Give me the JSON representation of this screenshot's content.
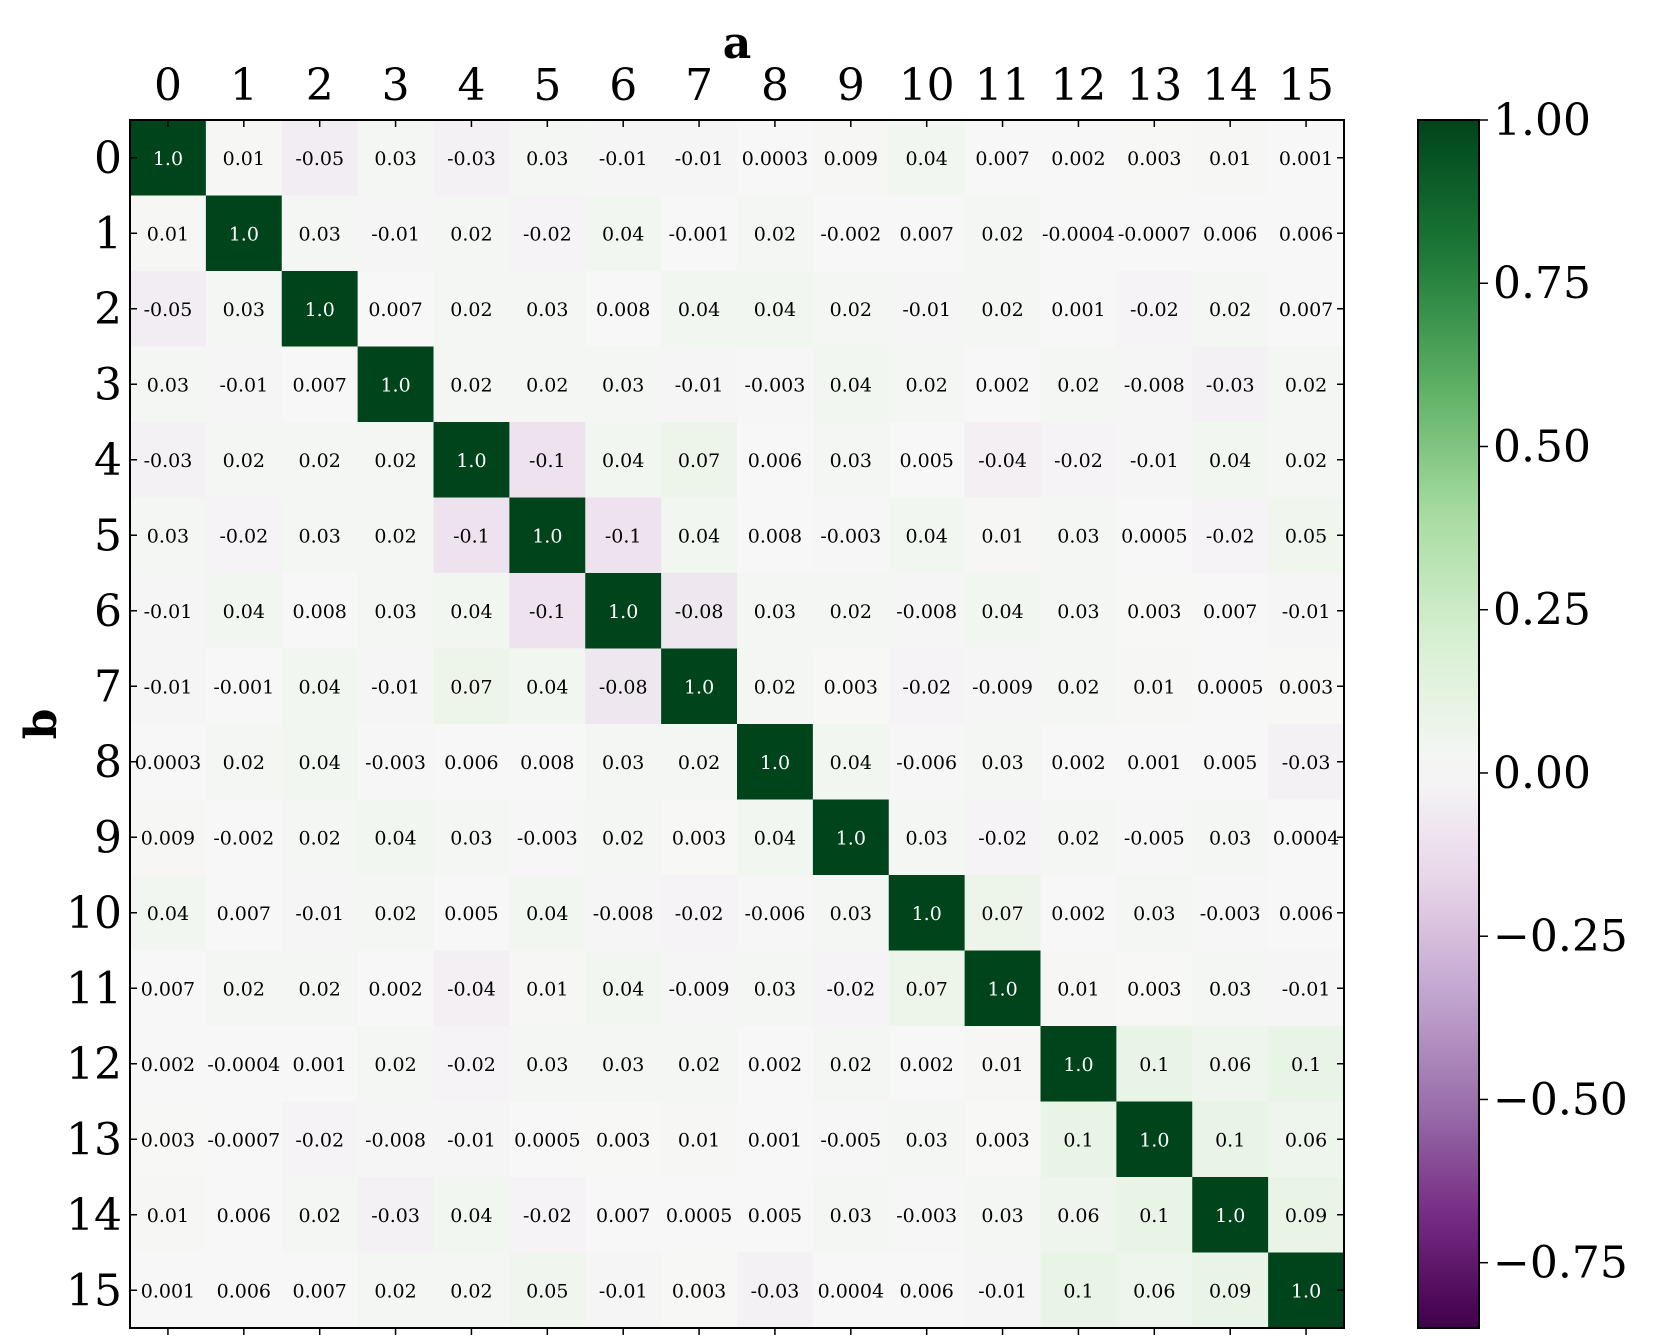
{
  "chart_data": {
    "type": "heatmap",
    "xlabel": "a",
    "ylabel": "b",
    "x_categories": [
      "0",
      "1",
      "2",
      "3",
      "4",
      "5",
      "6",
      "7",
      "8",
      "9",
      "10",
      "11",
      "12",
      "13",
      "14",
      "15"
    ],
    "y_categories": [
      "0",
      "1",
      "2",
      "3",
      "4",
      "5",
      "6",
      "7",
      "8",
      "9",
      "10",
      "11",
      "12",
      "13",
      "14",
      "15"
    ],
    "x_axis_position": "top",
    "colormap": "PRGn",
    "colorbar": {
      "range": [
        -0.85,
        1.0
      ],
      "ticks": [
        1.0,
        0.75,
        0.5,
        0.25,
        0.0,
        -0.25,
        -0.5,
        -0.75
      ],
      "tick_labels": [
        "1.00",
        "0.75",
        "0.50",
        "0.25",
        "0.00",
        "−0.25",
        "−0.50",
        "−0.75"
      ]
    },
    "values": [
      [
        1.0,
        0.01,
        -0.05,
        0.03,
        -0.03,
        0.03,
        -0.01,
        -0.01,
        0.0003,
        0.009,
        0.04,
        0.007,
        0.002,
        0.003,
        0.01,
        0.001
      ],
      [
        0.01,
        1.0,
        0.03,
        -0.01,
        0.02,
        -0.02,
        0.04,
        -0.001,
        0.02,
        -0.002,
        0.007,
        0.02,
        -0.0004,
        -0.0007,
        0.006,
        0.006
      ],
      [
        -0.05,
        0.03,
        1.0,
        0.007,
        0.02,
        0.03,
        0.008,
        0.04,
        0.04,
        0.02,
        -0.01,
        0.02,
        0.001,
        -0.02,
        0.02,
        0.007
      ],
      [
        0.03,
        -0.01,
        0.007,
        1.0,
        0.02,
        0.02,
        0.03,
        -0.01,
        -0.003,
        0.04,
        0.02,
        0.002,
        0.02,
        -0.008,
        -0.03,
        0.02
      ],
      [
        -0.03,
        0.02,
        0.02,
        0.02,
        1.0,
        -0.1,
        0.04,
        0.07,
        0.006,
        0.03,
        0.005,
        -0.04,
        -0.02,
        -0.01,
        0.04,
        0.02
      ],
      [
        0.03,
        -0.02,
        0.03,
        0.02,
        -0.1,
        1.0,
        -0.1,
        0.04,
        0.008,
        -0.003,
        0.04,
        0.01,
        0.03,
        0.0005,
        -0.02,
        0.05
      ],
      [
        -0.01,
        0.04,
        0.008,
        0.03,
        0.04,
        -0.1,
        1.0,
        -0.08,
        0.03,
        0.02,
        -0.008,
        0.04,
        0.03,
        0.003,
        0.007,
        -0.01
      ],
      [
        -0.01,
        -0.001,
        0.04,
        -0.01,
        0.07,
        0.04,
        -0.08,
        1.0,
        0.02,
        0.003,
        -0.02,
        -0.009,
        0.02,
        0.01,
        0.0005,
        0.003
      ],
      [
        0.0003,
        0.02,
        0.04,
        -0.003,
        0.006,
        0.008,
        0.03,
        0.02,
        1.0,
        0.04,
        -0.006,
        0.03,
        0.002,
        0.001,
        0.005,
        -0.03
      ],
      [
        0.009,
        -0.002,
        0.02,
        0.04,
        0.03,
        -0.003,
        0.02,
        0.003,
        0.04,
        1.0,
        0.03,
        -0.02,
        0.02,
        -0.005,
        0.03,
        0.0004
      ],
      [
        0.04,
        0.007,
        -0.01,
        0.02,
        0.005,
        0.04,
        -0.008,
        -0.02,
        -0.006,
        0.03,
        1.0,
        0.07,
        0.002,
        0.03,
        -0.003,
        0.006
      ],
      [
        0.007,
        0.02,
        0.02,
        0.002,
        -0.04,
        0.01,
        0.04,
        -0.009,
        0.03,
        -0.02,
        0.07,
        1.0,
        0.01,
        0.003,
        0.03,
        -0.01
      ],
      [
        0.002,
        -0.0004,
        0.001,
        0.02,
        -0.02,
        0.03,
        0.03,
        0.02,
        0.002,
        0.02,
        0.002,
        0.01,
        1.0,
        0.1,
        0.06,
        0.1
      ],
      [
        0.003,
        -0.0007,
        -0.02,
        -0.008,
        -0.01,
        0.0005,
        0.003,
        0.01,
        0.001,
        -0.005,
        0.03,
        0.003,
        0.1,
        1.0,
        0.1,
        0.06
      ],
      [
        0.01,
        0.006,
        0.02,
        -0.03,
        0.04,
        -0.02,
        0.007,
        0.0005,
        0.005,
        0.03,
        -0.003,
        0.03,
        0.06,
        0.1,
        1.0,
        0.09
      ],
      [
        0.001,
        0.006,
        0.007,
        0.02,
        0.02,
        0.05,
        -0.01,
        0.003,
        -0.03,
        0.0004,
        0.006,
        -0.01,
        0.1,
        0.06,
        0.09,
        1.0
      ]
    ],
    "cell_labels": [
      [
        "1.0",
        "0.01",
        "-0.05",
        "0.03",
        "-0.03",
        "0.03",
        "-0.01",
        "-0.01",
        "0.0003",
        "0.009",
        "0.04",
        "0.007",
        "0.002",
        "0.003",
        "0.01",
        "0.001"
      ],
      [
        "0.01",
        "1.0",
        "0.03",
        "-0.01",
        "0.02",
        "-0.02",
        "0.04",
        "-0.001",
        "0.02",
        "-0.002",
        "0.007",
        "0.02",
        "-0.0004",
        "-0.0007",
        "0.006",
        "0.006"
      ],
      [
        "-0.05",
        "0.03",
        "1.0",
        "0.007",
        "0.02",
        "0.03",
        "0.008",
        "0.04",
        "0.04",
        "0.02",
        "-0.01",
        "0.02",
        "0.001",
        "-0.02",
        "0.02",
        "0.007"
      ],
      [
        "0.03",
        "-0.01",
        "0.007",
        "1.0",
        "0.02",
        "0.02",
        "0.03",
        "-0.01",
        "-0.003",
        "0.04",
        "0.02",
        "0.002",
        "0.02",
        "-0.008",
        "-0.03",
        "0.02"
      ],
      [
        "-0.03",
        "0.02",
        "0.02",
        "0.02",
        "1.0",
        "-0.1",
        "0.04",
        "0.07",
        "0.006",
        "0.03",
        "0.005",
        "-0.04",
        "-0.02",
        "-0.01",
        "0.04",
        "0.02"
      ],
      [
        "0.03",
        "-0.02",
        "0.03",
        "0.02",
        "-0.1",
        "1.0",
        "-0.1",
        "0.04",
        "0.008",
        "-0.003",
        "0.04",
        "0.01",
        "0.03",
        "0.0005",
        "-0.02",
        "0.05"
      ],
      [
        "-0.01",
        "0.04",
        "0.008",
        "0.03",
        "0.04",
        "-0.1",
        "1.0",
        "-0.08",
        "0.03",
        "0.02",
        "-0.008",
        "0.04",
        "0.03",
        "0.003",
        "0.007",
        "-0.01"
      ],
      [
        "-0.01",
        "-0.001",
        "0.04",
        "-0.01",
        "0.07",
        "0.04",
        "-0.08",
        "1.0",
        "0.02",
        "0.003",
        "-0.02",
        "-0.009",
        "0.02",
        "0.01",
        "0.0005",
        "0.003"
      ],
      [
        "0.0003",
        "0.02",
        "0.04",
        "-0.003",
        "0.006",
        "0.008",
        "0.03",
        "0.02",
        "1.0",
        "0.04",
        "-0.006",
        "0.03",
        "0.002",
        "0.001",
        "0.005",
        "-0.03"
      ],
      [
        "0.009",
        "-0.002",
        "0.02",
        "0.04",
        "0.03",
        "-0.003",
        "0.02",
        "0.003",
        "0.04",
        "1.0",
        "0.03",
        "-0.02",
        "0.02",
        "-0.005",
        "0.03",
        "0.0004"
      ],
      [
        "0.04",
        "0.007",
        "-0.01",
        "0.02",
        "0.005",
        "0.04",
        "-0.008",
        "-0.02",
        "-0.006",
        "0.03",
        "1.0",
        "0.07",
        "0.002",
        "0.03",
        "-0.003",
        "0.006"
      ],
      [
        "0.007",
        "0.02",
        "0.02",
        "0.002",
        "-0.04",
        "0.01",
        "0.04",
        "-0.009",
        "0.03",
        "-0.02",
        "0.07",
        "1.0",
        "0.01",
        "0.003",
        "0.03",
        "-0.01"
      ],
      [
        "0.002",
        "-0.0004",
        "0.001",
        "0.02",
        "-0.02",
        "0.03",
        "0.03",
        "0.02",
        "0.002",
        "0.02",
        "0.002",
        "0.01",
        "1.0",
        "0.1",
        "0.06",
        "0.1"
      ],
      [
        "0.003",
        "-0.0007",
        "-0.02",
        "-0.008",
        "-0.01",
        "0.0005",
        "0.003",
        "0.01",
        "0.001",
        "-0.005",
        "0.03",
        "0.003",
        "0.1",
        "1.0",
        "0.1",
        "0.06"
      ],
      [
        "0.01",
        "0.006",
        "0.02",
        "-0.03",
        "0.04",
        "-0.02",
        "0.007",
        "0.0005",
        "0.005",
        "0.03",
        "-0.003",
        "0.03",
        "0.06",
        "0.1",
        "1.0",
        "0.09"
      ],
      [
        "0.001",
        "0.006",
        "0.007",
        "0.02",
        "0.02",
        "0.05",
        "-0.01",
        "0.003",
        "-0.03",
        "0.0004",
        "0.006",
        "-0.01",
        "0.1",
        "0.06",
        "0.09",
        "1.0"
      ]
    ]
  }
}
